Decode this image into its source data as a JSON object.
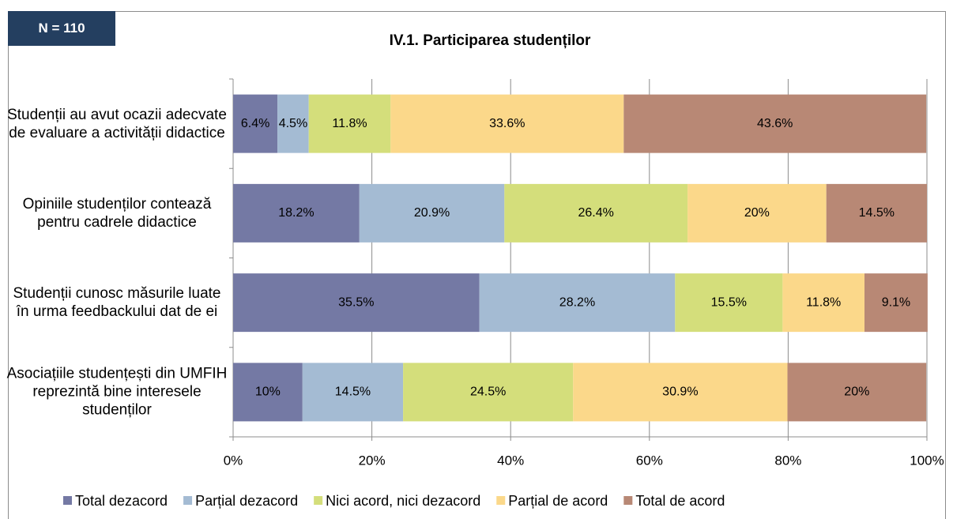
{
  "chart_data": {
    "type": "stacked-bar-horizontal",
    "badge": "N = 110",
    "title": "IV.1. Participarea studenților",
    "categories": [
      "Studenții au avut ocazii adecvate de evaluare a activității didactice",
      "Opiniile studenților contează pentru cadrele didactice",
      "Studenții cunosc măsurile luate în urma feedbackului dat de ei",
      "Asociațiile studențești din UMFIH reprezintă bine interesele studenților"
    ],
    "series": [
      {
        "name": "Total dezacord",
        "color": "#7479a4",
        "values": [
          6.4,
          18.2,
          35.5,
          10
        ],
        "value_labels": [
          "6.4%",
          "18.2%",
          "35.5%",
          "10%"
        ]
      },
      {
        "name": "Parțial dezacord",
        "color": "#a4bbd3",
        "values": [
          4.5,
          20.9,
          28.2,
          14.5
        ],
        "value_labels": [
          "4.5%",
          "20.9%",
          "28.2%",
          "14.5%"
        ]
      },
      {
        "name": "Nici acord, nici dezacord",
        "color": "#d4de7b",
        "values": [
          11.8,
          26.4,
          15.5,
          24.5
        ],
        "value_labels": [
          "11.8%",
          "26.4%",
          "15.5%",
          "24.5%"
        ]
      },
      {
        "name": "Parțial de acord",
        "color": "#fbd88a",
        "values": [
          33.6,
          20,
          11.8,
          30.9
        ],
        "value_labels": [
          "33.6%",
          "20%",
          "11.8%",
          "30.9%"
        ]
      },
      {
        "name": "Total de acord",
        "color": "#b88875",
        "values": [
          43.6,
          14.5,
          9.1,
          20
        ],
        "value_labels": [
          "43.6%",
          "14.5%",
          "9.1%",
          "20%"
        ]
      }
    ],
    "xlim": [
      0,
      100
    ],
    "xticks": [
      {
        "value": 0,
        "label": "0%"
      },
      {
        "value": 20,
        "label": "20%"
      },
      {
        "value": 40,
        "label": "40%"
      },
      {
        "value": 60,
        "label": "60%"
      },
      {
        "value": 80,
        "label": "80%"
      },
      {
        "value": 100,
        "label": "100%"
      }
    ],
    "grid": true,
    "legend": "bottom"
  }
}
